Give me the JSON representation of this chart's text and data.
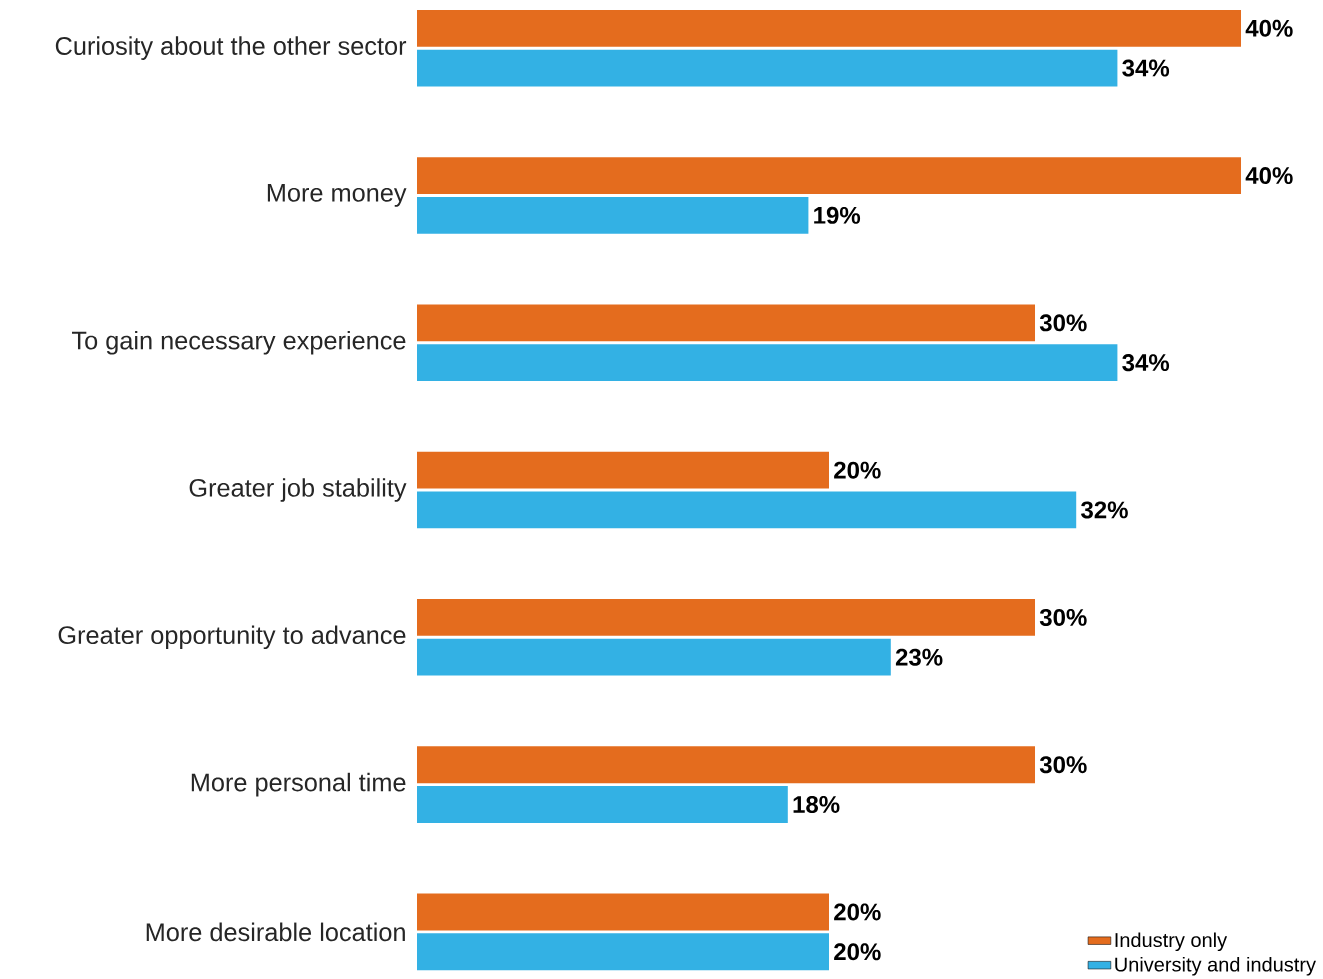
{
  "chart_data": {
    "type": "bar",
    "orientation": "horizontal",
    "categories": [
      "Curiosity about the other sector",
      "More money",
      "To gain necessary experience",
      "Greater job stability",
      "Greater opportunity to advance",
      "More personal time",
      "More desirable location"
    ],
    "series": [
      {
        "name": "Industry only",
        "color": "#e46c1e",
        "values": [
          40,
          40,
          30,
          20,
          30,
          30,
          20
        ],
        "value_labels": [
          "40%",
          "40%",
          "30%",
          "20%",
          "30%",
          "30%",
          "20%"
        ]
      },
      {
        "name": "University and industry",
        "color": "#33b1e4",
        "values": [
          34,
          19,
          34,
          32,
          23,
          18,
          20
        ],
        "value_labels": [
          "34%",
          "19%",
          "34%",
          "32%",
          "23%",
          "18%",
          "20%"
        ]
      }
    ],
    "tick_labels": "y",
    "grid": false,
    "legend": "bottom right"
  }
}
